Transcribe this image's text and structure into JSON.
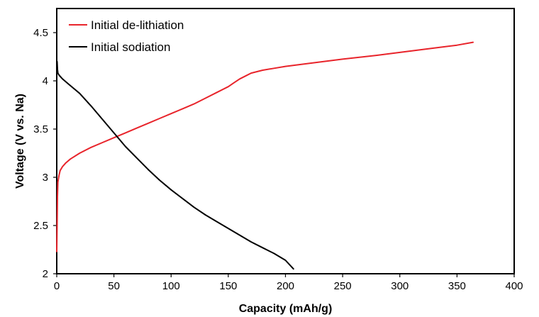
{
  "chart_data": {
    "type": "line",
    "title": "",
    "xlabel": "Capacity (mAh/g)",
    "ylabel": "Voltage (V vs. Na)",
    "xlim": [
      0,
      400
    ],
    "ylim": [
      2,
      4.75
    ],
    "xticks": [
      "0",
      "50",
      "100",
      "150",
      "200",
      "250",
      "300",
      "350",
      "400"
    ],
    "yticks": [
      "2",
      "2.5",
      "3",
      "3.5",
      "4",
      "4.5"
    ],
    "grid": false,
    "legend_position": "top-left",
    "series": [
      {
        "name": "Initial de-lithiation",
        "color": "#e8242b",
        "x": [
          0,
          0.3,
          0.6,
          1,
          2,
          3,
          5,
          8,
          12,
          20,
          30,
          40,
          50,
          60,
          70,
          80,
          90,
          100,
          110,
          120,
          130,
          140,
          150,
          155,
          160,
          165,
          170,
          180,
          190,
          200,
          220,
          250,
          280,
          300,
          330,
          350,
          364
        ],
        "y": [
          2.23,
          2.5,
          2.8,
          2.95,
          3.02,
          3.07,
          3.11,
          3.15,
          3.19,
          3.25,
          3.31,
          3.36,
          3.41,
          3.46,
          3.51,
          3.56,
          3.61,
          3.66,
          3.71,
          3.76,
          3.82,
          3.88,
          3.94,
          3.98,
          4.02,
          4.05,
          4.08,
          4.11,
          4.13,
          4.15,
          4.18,
          4.225,
          4.265,
          4.295,
          4.34,
          4.37,
          4.4
        ]
      },
      {
        "name": "Initial sodiation",
        "color": "#000000",
        "x": [
          0.3,
          0.6,
          1,
          2,
          5,
          10,
          20,
          30,
          40,
          50,
          60,
          70,
          80,
          90,
          100,
          110,
          120,
          130,
          140,
          150,
          160,
          170,
          180,
          190,
          200,
          207
        ],
        "y": [
          4.2,
          4.12,
          4.08,
          4.06,
          4.02,
          3.97,
          3.87,
          3.74,
          3.6,
          3.46,
          3.32,
          3.2,
          3.08,
          2.97,
          2.87,
          2.78,
          2.69,
          2.61,
          2.54,
          2.47,
          2.4,
          2.33,
          2.27,
          2.21,
          2.14,
          2.05
        ]
      }
    ]
  }
}
